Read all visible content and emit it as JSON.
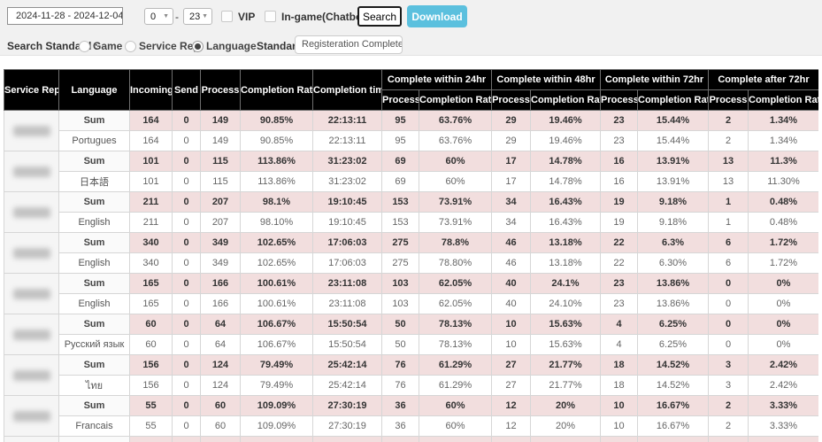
{
  "controls": {
    "date_range": "2024-11-28 - 2024-12-04",
    "hour_from": "0",
    "hour_to": "23",
    "range_separator": "-",
    "caret": "▼",
    "vip_label": "VIP",
    "ingame_label": "In-game(Chatbot)",
    "search_label": "Search",
    "download_label": "Download",
    "search_standard_label": "Search Standard :",
    "standards": [
      {
        "label": "Game",
        "selected": false
      },
      {
        "label": "Service Rep",
        "selected": false
      },
      {
        "label": "Language",
        "selected": true
      }
    ],
    "standard_time_label": "Standard time :",
    "standard_time_value": "Registeration Complete ~ Cer"
  },
  "colors": {
    "download_button": "#5bc0de",
    "header_bg": "#000000",
    "sum_row_bg": "#f2dede",
    "topbar_bg": "#f1f1f1"
  },
  "table": {
    "columns": [
      "Service Rep",
      "Language",
      "Incoming",
      "Send",
      "Process",
      "Completion Rate",
      "Completion time"
    ],
    "groups": [
      {
        "label": "Complete within 24hr",
        "sub": [
          "Process",
          "Completion Rate"
        ]
      },
      {
        "label": "Complete within 48hr",
        "sub": [
          "Process",
          "Completion Rate"
        ]
      },
      {
        "label": "Complete within 72hr",
        "sub": [
          "Process",
          "Completion Rate"
        ]
      },
      {
        "label": "Complete after 72hr",
        "sub": [
          "Process",
          "Completion Rate"
        ]
      }
    ],
    "row_groups": [
      {
        "service_rep_redacted": true,
        "rows": [
          {
            "language": "Sum",
            "sum": true,
            "values": [
              "164",
              "0",
              "149",
              "90.85%",
              "22:13:11",
              "95",
              "63.76%",
              "29",
              "19.46%",
              "23",
              "15.44%",
              "2",
              "1.34%"
            ]
          },
          {
            "language": "Portugues",
            "sum": false,
            "values": [
              "164",
              "0",
              "149",
              "90.85%",
              "22:13:11",
              "95",
              "63.76%",
              "29",
              "19.46%",
              "23",
              "15.44%",
              "2",
              "1.34%"
            ]
          }
        ]
      },
      {
        "service_rep_redacted": true,
        "rows": [
          {
            "language": "Sum",
            "sum": true,
            "values": [
              "101",
              "0",
              "115",
              "113.86%",
              "31:23:02",
              "69",
              "60%",
              "17",
              "14.78%",
              "16",
              "13.91%",
              "13",
              "11.3%"
            ]
          },
          {
            "language": "日本語",
            "sum": false,
            "values": [
              "101",
              "0",
              "115",
              "113.86%",
              "31:23:02",
              "69",
              "60%",
              "17",
              "14.78%",
              "16",
              "13.91%",
              "13",
              "11.30%"
            ]
          }
        ]
      },
      {
        "service_rep_redacted": true,
        "rows": [
          {
            "language": "Sum",
            "sum": true,
            "values": [
              "211",
              "0",
              "207",
              "98.1%",
              "19:10:45",
              "153",
              "73.91%",
              "34",
              "16.43%",
              "19",
              "9.18%",
              "1",
              "0.48%"
            ]
          },
          {
            "language": "English",
            "sum": false,
            "values": [
              "211",
              "0",
              "207",
              "98.10%",
              "19:10:45",
              "153",
              "73.91%",
              "34",
              "16.43%",
              "19",
              "9.18%",
              "1",
              "0.48%"
            ]
          }
        ]
      },
      {
        "service_rep_redacted": true,
        "rows": [
          {
            "language": "Sum",
            "sum": true,
            "values": [
              "340",
              "0",
              "349",
              "102.65%",
              "17:06:03",
              "275",
              "78.8%",
              "46",
              "13.18%",
              "22",
              "6.3%",
              "6",
              "1.72%"
            ]
          },
          {
            "language": "English",
            "sum": false,
            "values": [
              "340",
              "0",
              "349",
              "102.65%",
              "17:06:03",
              "275",
              "78.80%",
              "46",
              "13.18%",
              "22",
              "6.30%",
              "6",
              "1.72%"
            ]
          }
        ]
      },
      {
        "service_rep_redacted": true,
        "rows": [
          {
            "language": "Sum",
            "sum": true,
            "values": [
              "165",
              "0",
              "166",
              "100.61%",
              "23:11:08",
              "103",
              "62.05%",
              "40",
              "24.1%",
              "23",
              "13.86%",
              "0",
              "0%"
            ]
          },
          {
            "language": "English",
            "sum": false,
            "values": [
              "165",
              "0",
              "166",
              "100.61%",
              "23:11:08",
              "103",
              "62.05%",
              "40",
              "24.10%",
              "23",
              "13.86%",
              "0",
              "0%"
            ]
          }
        ]
      },
      {
        "service_rep_redacted": true,
        "rows": [
          {
            "language": "Sum",
            "sum": true,
            "values": [
              "60",
              "0",
              "64",
              "106.67%",
              "15:50:54",
              "50",
              "78.13%",
              "10",
              "15.63%",
              "4",
              "6.25%",
              "0",
              "0%"
            ]
          },
          {
            "language": "Русский язык",
            "sum": false,
            "values": [
              "60",
              "0",
              "64",
              "106.67%",
              "15:50:54",
              "50",
              "78.13%",
              "10",
              "15.63%",
              "4",
              "6.25%",
              "0",
              "0%"
            ]
          }
        ]
      },
      {
        "service_rep_redacted": true,
        "rows": [
          {
            "language": "Sum",
            "sum": true,
            "values": [
              "156",
              "0",
              "124",
              "79.49%",
              "25:42:14",
              "76",
              "61.29%",
              "27",
              "21.77%",
              "18",
              "14.52%",
              "3",
              "2.42%"
            ]
          },
          {
            "language": "ไทย",
            "sum": false,
            "values": [
              "156",
              "0",
              "124",
              "79.49%",
              "25:42:14",
              "76",
              "61.29%",
              "27",
              "21.77%",
              "18",
              "14.52%",
              "3",
              "2.42%"
            ]
          }
        ]
      },
      {
        "service_rep_redacted": true,
        "rows": [
          {
            "language": "Sum",
            "sum": true,
            "values": [
              "55",
              "0",
              "60",
              "109.09%",
              "27:30:19",
              "36",
              "60%",
              "12",
              "20%",
              "10",
              "16.67%",
              "2",
              "3.33%"
            ]
          },
          {
            "language": "Francais",
            "sum": false,
            "values": [
              "55",
              "0",
              "60",
              "109.09%",
              "27:30:19",
              "36",
              "60%",
              "12",
              "20%",
              "10",
              "16.67%",
              "2",
              "3.33%"
            ]
          }
        ]
      }
    ],
    "partial_next_row": true
  }
}
